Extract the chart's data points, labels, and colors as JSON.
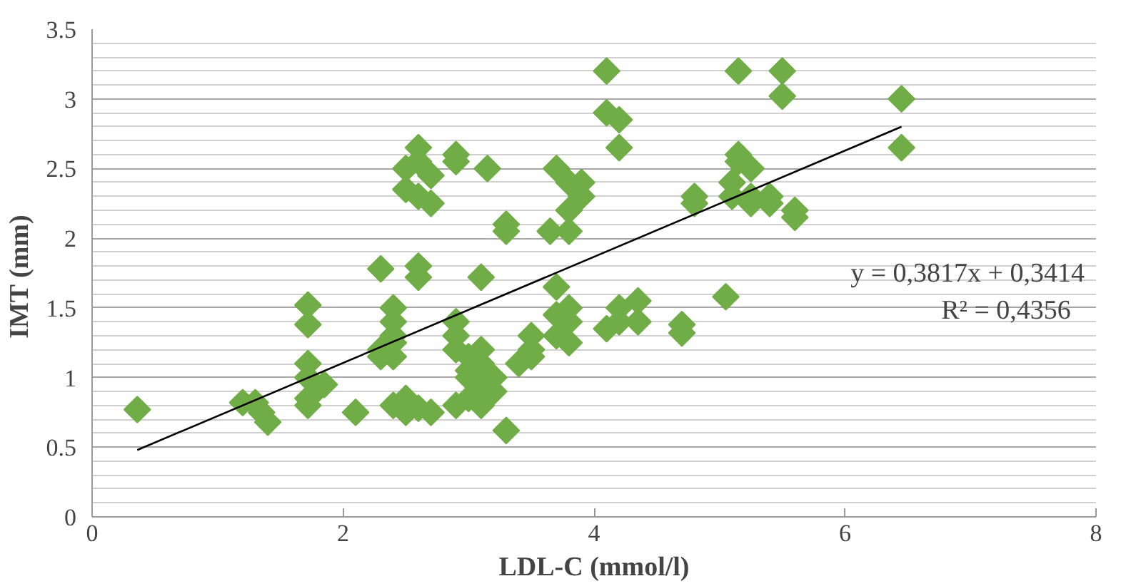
{
  "chart_data": {
    "type": "scatter",
    "xlabel": "LDL-C (mmol/l)",
    "ylabel": "IMT  (mm)",
    "xlim": [
      0,
      8
    ],
    "xticks": [
      0,
      2,
      4,
      6,
      8
    ],
    "ylim": [
      0,
      3.5
    ],
    "yticks": [
      0,
      {
        "value": 0.5,
        "label": "0.5"
      },
      1,
      {
        "value": 1.5,
        "label": "1.5"
      },
      2,
      {
        "value": 2.5,
        "label": "2.5"
      },
      3,
      {
        "value": 3.5,
        "label": "3.5"
      }
    ],
    "grid": "y",
    "annotations": [
      "y = 0,3817x + 0,3414",
      "R² = 0,4356"
    ],
    "series": [
      {
        "marker": "diamond",
        "color": "#70ad47",
        "x": [
          0.36,
          1.2,
          1.3,
          1.4,
          1.35,
          1.72,
          1.72,
          1.72,
          1.72,
          1.72,
          1.72,
          1.8,
          1.85,
          2.1,
          2.3,
          2.3,
          2.3,
          2.4,
          2.4,
          2.4,
          2.4,
          2.4,
          2.4,
          2.5,
          2.5,
          2.5,
          2.5,
          2.6,
          2.6,
          2.6,
          2.6,
          2.6,
          2.6,
          2.7,
          2.7,
          2.7,
          2.9,
          2.9,
          2.9,
          2.9,
          2.9,
          2.9,
          3.0,
          3.0,
          3.0,
          3.0,
          3.1,
          3.1,
          3.1,
          3.1,
          3.1,
          3.15,
          3.2,
          3.2,
          3.3,
          3.3,
          3.3,
          3.4,
          3.5,
          3.5,
          3.5,
          3.65,
          3.7,
          3.7,
          3.7,
          3.7,
          3.8,
          3.8,
          3.8,
          3.8,
          3.8,
          3.8,
          3.9,
          3.9,
          4.1,
          4.1,
          4.1,
          4.2,
          4.2,
          4.2,
          4.2,
          4.35,
          4.35,
          4.7,
          4.7,
          4.8,
          4.8,
          5.05,
          5.1,
          5.1,
          5.15,
          5.15,
          5.15,
          5.25,
          5.25,
          5.25,
          5.4,
          5.4,
          5.5,
          5.5,
          5.6,
          5.6,
          6.45,
          6.45
        ],
        "values": [
          0.77,
          0.82,
          0.82,
          0.68,
          0.75,
          1.52,
          1.38,
          1.1,
          1.0,
          0.85,
          0.8,
          0.92,
          0.95,
          0.75,
          1.78,
          1.2,
          1.15,
          1.5,
          1.4,
          1.3,
          1.25,
          1.15,
          0.8,
          2.5,
          2.35,
          0.85,
          0.75,
          2.65,
          2.55,
          2.3,
          1.8,
          1.72,
          0.78,
          2.45,
          2.25,
          0.75,
          2.6,
          2.55,
          1.4,
          1.3,
          1.2,
          0.8,
          1.15,
          1.05,
          1.0,
          0.85,
          1.72,
          1.2,
          1.1,
          0.9,
          0.8,
          2.5,
          1.0,
          0.9,
          2.1,
          2.05,
          0.62,
          1.1,
          1.2,
          1.3,
          1.15,
          2.05,
          2.5,
          1.65,
          1.45,
          1.3,
          2.4,
          2.2,
          2.05,
          1.5,
          1.4,
          1.25,
          2.4,
          2.3,
          3.2,
          2.9,
          1.35,
          2.85,
          2.65,
          1.5,
          1.4,
          1.55,
          1.4,
          1.38,
          1.32,
          2.3,
          2.25,
          1.58,
          2.4,
          2.3,
          3.2,
          2.6,
          2.55,
          2.5,
          2.3,
          2.25,
          2.25,
          2.3,
          3.2,
          3.02,
          2.2,
          2.15,
          3.0,
          2.65
        ]
      },
      {
        "type": "line",
        "color": "#000000",
        "x": [
          0.36,
          6.45
        ],
        "values": [
          0.48,
          2.8
        ]
      }
    ]
  }
}
